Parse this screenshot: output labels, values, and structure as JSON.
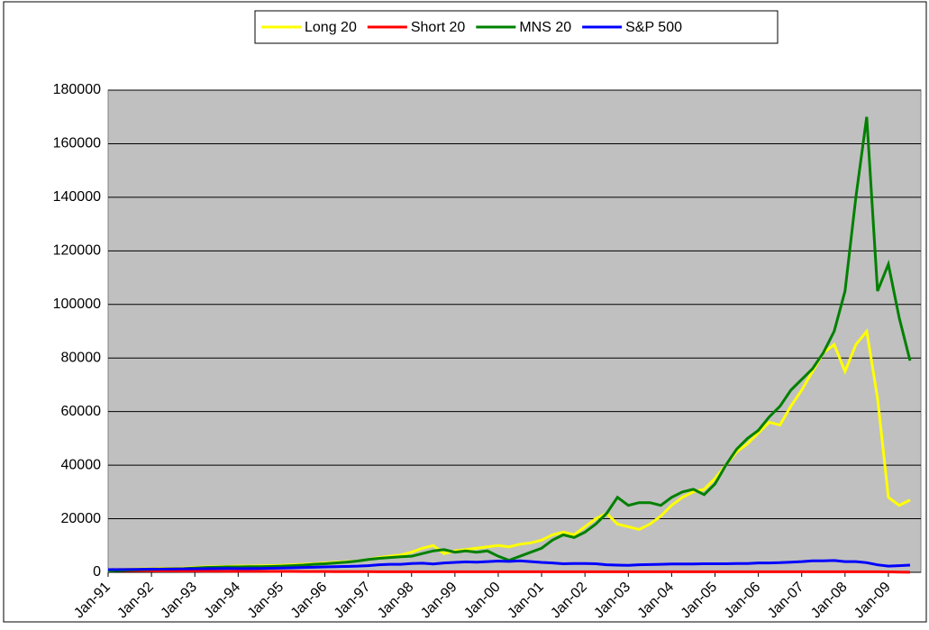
{
  "chart_data": {
    "type": "line",
    "categories": [
      "Jan-91",
      null,
      null,
      null,
      "Jan-92",
      null,
      null,
      null,
      "Jan-93",
      null,
      null,
      null,
      "Jan-94",
      null,
      null,
      null,
      "Jan-95",
      null,
      null,
      null,
      "Jan-96",
      null,
      null,
      null,
      "Jan-97",
      null,
      null,
      null,
      "Jan-98",
      null,
      null,
      null,
      "Jan-99",
      null,
      null,
      null,
      "Jan-00",
      null,
      null,
      null,
      "Jan-01",
      null,
      null,
      null,
      "Jan-02",
      null,
      null,
      null,
      "Jan-03",
      null,
      null,
      null,
      "Jan-04",
      null,
      null,
      null,
      "Jan-05",
      null,
      null,
      null,
      "Jan-06",
      null,
      null,
      null,
      "Jan-07",
      null,
      null,
      null,
      "Jan-08",
      null,
      null,
      null,
      "Jan-09",
      null,
      null
    ],
    "series": [
      {
        "name": "Long 20",
        "color": "#ffff00",
        "values": [
          1000,
          1100,
          1200,
          1300,
          1400,
          1500,
          1500,
          1600,
          1800,
          2000,
          2100,
          2200,
          2300,
          2300,
          2400,
          2500,
          2600,
          2800,
          3000,
          3200,
          3500,
          3800,
          4000,
          4200,
          4800,
          5500,
          6000,
          6500,
          7500,
          9000,
          10000,
          7000,
          8000,
          8500,
          9000,
          9500,
          10000,
          9500,
          10500,
          11000,
          12000,
          14000,
          15000,
          14000,
          17000,
          20000,
          22000,
          18000,
          17000,
          16000,
          18000,
          21000,
          25000,
          28000,
          30000,
          31000,
          35000,
          40000,
          45000,
          48000,
          52000,
          56000,
          55000,
          62000,
          68000,
          75000,
          82000,
          85000,
          75000,
          85000,
          90000,
          65000,
          28000,
          25000,
          27000
        ]
      },
      {
        "name": "Short 20",
        "color": "#ff0000",
        "values": [
          800,
          700,
          650,
          600,
          550,
          500,
          500,
          450,
          450,
          400,
          400,
          380,
          380,
          370,
          360,
          350,
          340,
          320,
          300,
          290,
          280,
          270,
          260,
          250,
          240,
          230,
          220,
          220,
          210,
          210,
          200,
          200,
          200,
          200,
          200,
          200,
          200,
          200,
          200,
          200,
          200,
          200,
          200,
          200,
          200,
          200,
          200,
          200,
          200,
          200,
          200,
          200,
          200,
          200,
          200,
          200,
          200,
          200,
          200,
          200,
          200,
          200,
          200,
          200,
          200,
          200,
          200,
          200,
          200,
          200,
          200,
          200,
          150,
          100,
          50
        ]
      },
      {
        "name": "MNS 20",
        "color": "#008000",
        "values": [
          500,
          700,
          900,
          1000,
          1100,
          1200,
          1300,
          1400,
          1600,
          1800,
          1900,
          2000,
          2000,
          2100,
          2100,
          2200,
          2300,
          2500,
          2700,
          3000,
          3200,
          3500,
          3800,
          4200,
          4800,
          5200,
          5500,
          5800,
          6000,
          7000,
          8000,
          8500,
          7500,
          8000,
          7500,
          8000,
          6000,
          4500,
          6000,
          7500,
          9000,
          12000,
          14000,
          13000,
          15000,
          18000,
          22000,
          28000,
          25000,
          26000,
          26000,
          25000,
          28000,
          30000,
          31000,
          29000,
          33000,
          40000,
          46000,
          50000,
          53000,
          58000,
          62000,
          68000,
          72000,
          76000,
          82000,
          90000,
          105000,
          140000,
          170000,
          105000,
          115000,
          95000,
          79000
        ]
      },
      {
        "name": "S&P 500",
        "color": "#0000ff",
        "values": [
          1000,
          1050,
          1100,
          1150,
          1200,
          1200,
          1250,
          1300,
          1300,
          1350,
          1400,
          1450,
          1400,
          1400,
          1450,
          1500,
          1600,
          1700,
          1800,
          1900,
          2000,
          2100,
          2200,
          2300,
          2500,
          2800,
          3000,
          3000,
          3300,
          3400,
          3100,
          3500,
          3700,
          3900,
          3800,
          4000,
          4200,
          4100,
          4300,
          4000,
          3700,
          3500,
          3200,
          3300,
          3300,
          3200,
          2800,
          2700,
          2600,
          2800,
          2900,
          3000,
          3100,
          3100,
          3100,
          3200,
          3200,
          3200,
          3300,
          3300,
          3500,
          3500,
          3600,
          3800,
          4000,
          4300,
          4300,
          4400,
          4000,
          4000,
          3600,
          2800,
          2300,
          2500,
          2700
        ]
      }
    ],
    "ylim": [
      0,
      180000
    ],
    "yticks": [
      0,
      20000,
      40000,
      60000,
      80000,
      100000,
      120000,
      140000,
      160000,
      180000
    ],
    "grid": true,
    "legend": "top"
  }
}
